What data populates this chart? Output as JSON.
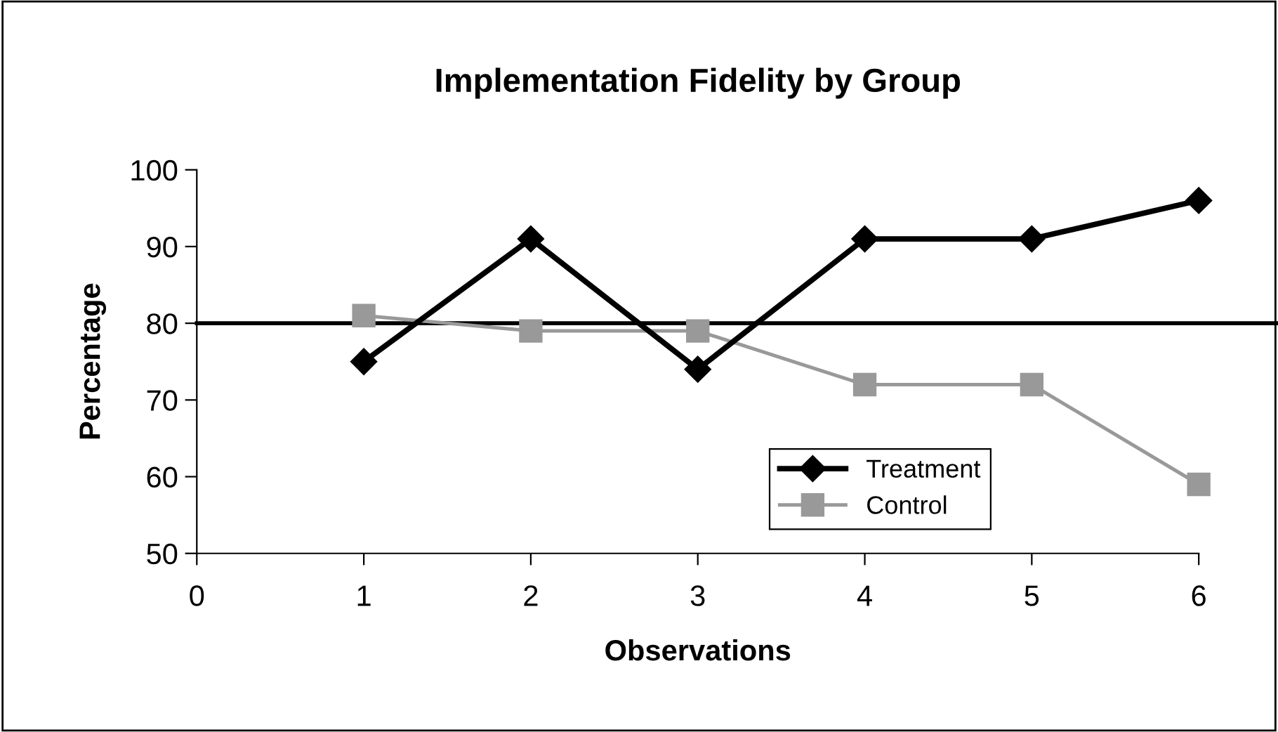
{
  "chart_data": {
    "type": "line",
    "title": "Implementation Fidelity by Group",
    "xlabel": "Observations",
    "ylabel": "Percentage",
    "x": [
      1,
      2,
      3,
      4,
      5,
      6
    ],
    "series": [
      {
        "name": "Treatment",
        "color": "#000000",
        "marker": "diamond",
        "values": [
          75,
          91,
          74,
          91,
          91,
          96
        ]
      },
      {
        "name": "Control",
        "color": "#999999",
        "marker": "square",
        "values": [
          81,
          79,
          79,
          72,
          72,
          59
        ]
      }
    ],
    "xlim": [
      0,
      6
    ],
    "xticks": [
      0,
      1,
      2,
      3,
      4,
      5,
      6
    ],
    "ylim": [
      50,
      100
    ],
    "yticks": [
      50,
      60,
      70,
      80,
      90,
      100
    ],
    "ref_lines": [
      {
        "axis": "y",
        "value": 80,
        "color": "#000000"
      }
    ],
    "grid": false,
    "legend": "bottom right",
    "line_style": "solid"
  }
}
